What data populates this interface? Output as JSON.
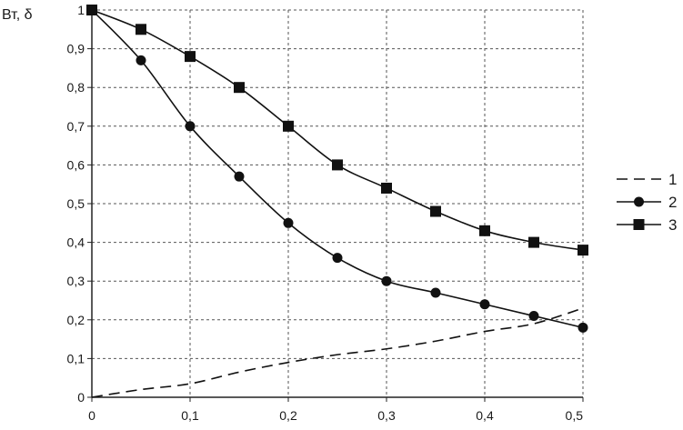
{
  "chart_data": {
    "type": "line",
    "title": "",
    "xlabel": "",
    "ylabel": "Вт, δ",
    "xlim": [
      0,
      0.5
    ],
    "ylim": [
      0,
      1
    ],
    "grid": true,
    "legend_position": "right",
    "x_ticks": [
      "0",
      "0,1",
      "0,2",
      "0,3",
      "0,4",
      "0,5"
    ],
    "y_ticks": [
      "0",
      "0,1",
      "0,2",
      "0,3",
      "0,4",
      "0,5",
      "0,6",
      "0,7",
      "0,8",
      "0,9",
      "1"
    ],
    "series": [
      {
        "name": "1",
        "style": "dashed",
        "marker": "none",
        "x": [
          0,
          0.05,
          0.1,
          0.15,
          0.2,
          0.25,
          0.3,
          0.35,
          0.4,
          0.45,
          0.5
        ],
        "values": [
          0,
          0.02,
          0.035,
          0.065,
          0.09,
          0.11,
          0.125,
          0.145,
          0.17,
          0.19,
          0.23
        ]
      },
      {
        "name": "2",
        "style": "solid",
        "marker": "circle",
        "x": [
          0,
          0.05,
          0.1,
          0.15,
          0.2,
          0.25,
          0.3,
          0.35,
          0.4,
          0.45,
          0.5
        ],
        "values": [
          1.0,
          0.87,
          0.7,
          0.57,
          0.45,
          0.36,
          0.3,
          0.27,
          0.24,
          0.21,
          0.18
        ]
      },
      {
        "name": "3",
        "style": "solid",
        "marker": "square",
        "x": [
          0,
          0.05,
          0.1,
          0.15,
          0.2,
          0.25,
          0.3,
          0.35,
          0.4,
          0.45,
          0.5
        ],
        "values": [
          1.0,
          0.95,
          0.88,
          0.8,
          0.7,
          0.6,
          0.54,
          0.48,
          0.43,
          0.4,
          0.38
        ]
      }
    ]
  }
}
